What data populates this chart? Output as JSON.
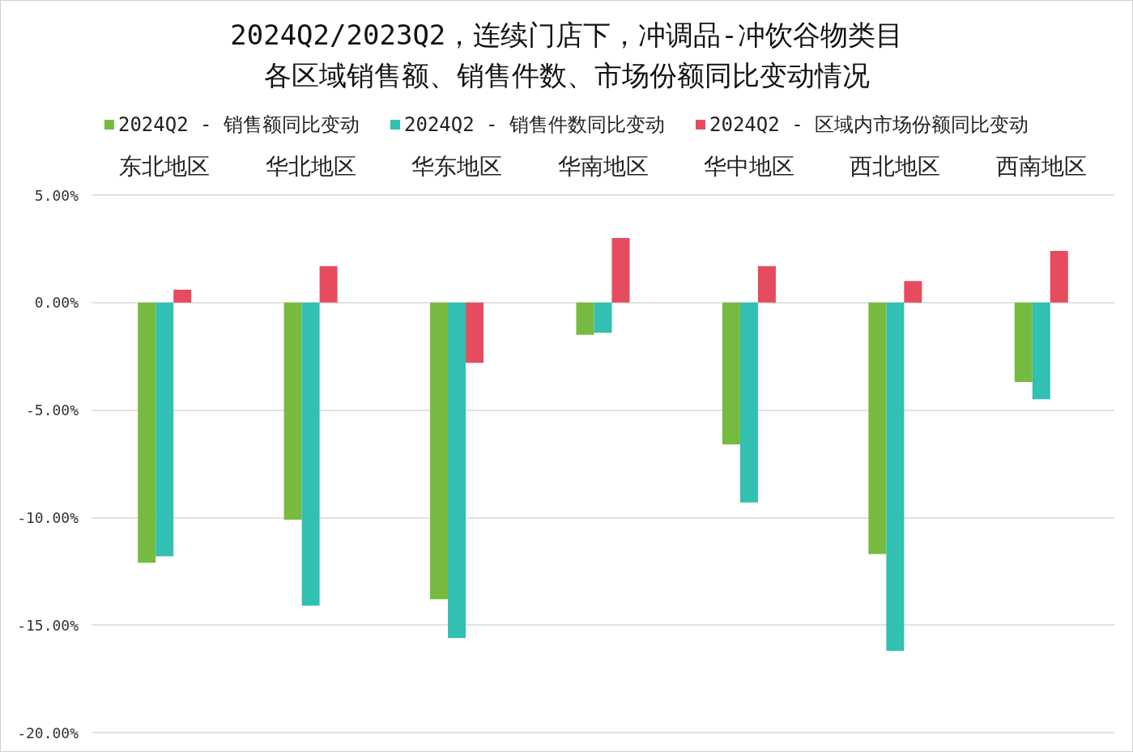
{
  "chart_data": {
    "type": "bar",
    "title": "2024Q2/2023Q2，连续门店下，冲调品-冲饮谷物类目",
    "subtitle": "各区域销售额、销售件数、市场份额同比变动情况",
    "categories": [
      "东北地区",
      "华北地区",
      "华东地区",
      "华南地区",
      "华中地区",
      "西北地区",
      "西南地区"
    ],
    "series": [
      {
        "name": "2024Q2 - 销售额同比变动",
        "color": "#76bb40",
        "values": [
          -12.1,
          -10.1,
          -13.8,
          -1.5,
          -6.6,
          -11.7,
          -3.7
        ]
      },
      {
        "name": "2024Q2 - 销售件数同比变动",
        "color": "#31c0b2",
        "values": [
          -11.8,
          -14.1,
          -15.6,
          -1.4,
          -9.3,
          -16.2,
          -4.5
        ]
      },
      {
        "name": "2024Q2 - 区域内市场份额同比变动",
        "color": "#e64c5e",
        "values": [
          0.6,
          1.7,
          -2.8,
          3.0,
          1.7,
          1.0,
          2.4
        ]
      }
    ],
    "ylim": [
      -20,
      5
    ],
    "yticks": [
      {
        "value": -20,
        "label": "-20.00%"
      },
      {
        "value": -15,
        "label": "-15.00%"
      },
      {
        "value": -10,
        "label": "-10.00%"
      },
      {
        "value": -5,
        "label": "-5.00%"
      },
      {
        "value": 0,
        "label": "0.00%"
      },
      {
        "value": 5,
        "label": "5.00%"
      }
    ],
    "grid": "y",
    "legend": "top"
  }
}
